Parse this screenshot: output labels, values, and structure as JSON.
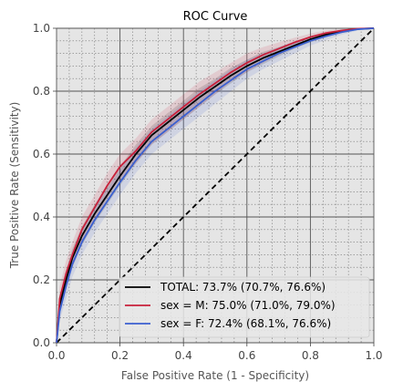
{
  "chart_data": {
    "type": "line",
    "title": "ROC Curve",
    "xlabel": "False Positive Rate (1 - Specificity)",
    "ylabel": "True Positive Rate (Sensitivity)",
    "xlim": [
      0,
      1
    ],
    "ylim": [
      0,
      1
    ],
    "xticks": [
      "0.0",
      "0.2",
      "0.4",
      "0.6",
      "0.8",
      "1.0"
    ],
    "yticks": [
      "0.0",
      "0.2",
      "0.4",
      "0.6",
      "0.8",
      "1.0"
    ],
    "grid": true,
    "minor_grid": true,
    "legend_position": "bottom-right",
    "background_color": "#e5e5e5",
    "reference_line": {
      "x": [
        0,
        1
      ],
      "y": [
        0,
        1
      ],
      "style": "dashed",
      "color": "#000000"
    },
    "series": [
      {
        "name": "TOTAL: 73.7% (70.7%, 76.6%)",
        "color": "#000000",
        "x": [
          0,
          0.01,
          0.03,
          0.05,
          0.08,
          0.12,
          0.16,
          0.2,
          0.25,
          0.3,
          0.35,
          0.4,
          0.45,
          0.5,
          0.55,
          0.6,
          0.65,
          0.7,
          0.75,
          0.8,
          0.85,
          0.9,
          0.95,
          1.0
        ],
        "y": [
          0,
          0.12,
          0.2,
          0.27,
          0.34,
          0.41,
          0.47,
          0.53,
          0.6,
          0.66,
          0.7,
          0.74,
          0.78,
          0.815,
          0.85,
          0.88,
          0.905,
          0.925,
          0.945,
          0.965,
          0.98,
          0.99,
          0.998,
          1.0
        ],
        "ci_low": [
          0,
          0.09,
          0.17,
          0.24,
          0.31,
          0.38,
          0.44,
          0.5,
          0.57,
          0.63,
          0.67,
          0.71,
          0.75,
          0.79,
          0.825,
          0.86,
          0.885,
          0.91,
          0.935,
          0.955,
          0.972,
          0.985,
          0.995,
          1.0
        ],
        "ci_high": [
          0,
          0.15,
          0.23,
          0.3,
          0.37,
          0.44,
          0.5,
          0.56,
          0.63,
          0.69,
          0.73,
          0.77,
          0.81,
          0.84,
          0.875,
          0.9,
          0.925,
          0.94,
          0.958,
          0.975,
          0.988,
          0.995,
          1.0,
          1.0
        ]
      },
      {
        "name": "sex = M: 75.0% (71.0%, 79.0%)",
        "color": "#c8203a",
        "x": [
          0,
          0.01,
          0.03,
          0.05,
          0.08,
          0.12,
          0.16,
          0.2,
          0.25,
          0.3,
          0.35,
          0.4,
          0.45,
          0.5,
          0.55,
          0.6,
          0.65,
          0.7,
          0.75,
          0.8,
          0.85,
          0.9,
          0.95,
          1.0
        ],
        "y": [
          0,
          0.14,
          0.22,
          0.28,
          0.36,
          0.43,
          0.5,
          0.56,
          0.61,
          0.67,
          0.71,
          0.75,
          0.79,
          0.825,
          0.86,
          0.89,
          0.915,
          0.935,
          0.955,
          0.972,
          0.985,
          0.993,
          0.999,
          1.0
        ],
        "ci_low": [
          0,
          0.1,
          0.18,
          0.24,
          0.32,
          0.39,
          0.46,
          0.52,
          0.57,
          0.63,
          0.67,
          0.71,
          0.75,
          0.79,
          0.83,
          0.86,
          0.89,
          0.915,
          0.94,
          0.96,
          0.975,
          0.985,
          0.995,
          1.0
        ],
        "ci_high": [
          0,
          0.18,
          0.26,
          0.32,
          0.4,
          0.47,
          0.54,
          0.6,
          0.65,
          0.71,
          0.75,
          0.79,
          0.83,
          0.86,
          0.89,
          0.92,
          0.94,
          0.955,
          0.97,
          0.983,
          0.993,
          0.998,
          1.0,
          1.0
        ]
      },
      {
        "name": "sex = F: 72.4% (68.1%, 76.6%)",
        "color": "#3a5fd0",
        "x": [
          0,
          0.01,
          0.03,
          0.05,
          0.08,
          0.12,
          0.16,
          0.2,
          0.25,
          0.3,
          0.35,
          0.4,
          0.45,
          0.5,
          0.55,
          0.6,
          0.65,
          0.7,
          0.75,
          0.8,
          0.85,
          0.9,
          0.95,
          1.0
        ],
        "y": [
          0,
          0.1,
          0.18,
          0.25,
          0.32,
          0.39,
          0.45,
          0.51,
          0.58,
          0.64,
          0.68,
          0.72,
          0.76,
          0.8,
          0.835,
          0.87,
          0.895,
          0.92,
          0.94,
          0.96,
          0.975,
          0.988,
          0.997,
          1.0
        ],
        "ci_low": [
          0,
          0.07,
          0.14,
          0.21,
          0.28,
          0.35,
          0.41,
          0.47,
          0.54,
          0.6,
          0.64,
          0.68,
          0.72,
          0.76,
          0.8,
          0.84,
          0.87,
          0.895,
          0.92,
          0.945,
          0.963,
          0.98,
          0.993,
          1.0
        ],
        "ci_high": [
          0,
          0.13,
          0.22,
          0.29,
          0.36,
          0.43,
          0.49,
          0.55,
          0.62,
          0.68,
          0.72,
          0.76,
          0.8,
          0.835,
          0.87,
          0.9,
          0.92,
          0.94,
          0.958,
          0.973,
          0.987,
          0.995,
          1.0,
          1.0
        ]
      }
    ]
  }
}
